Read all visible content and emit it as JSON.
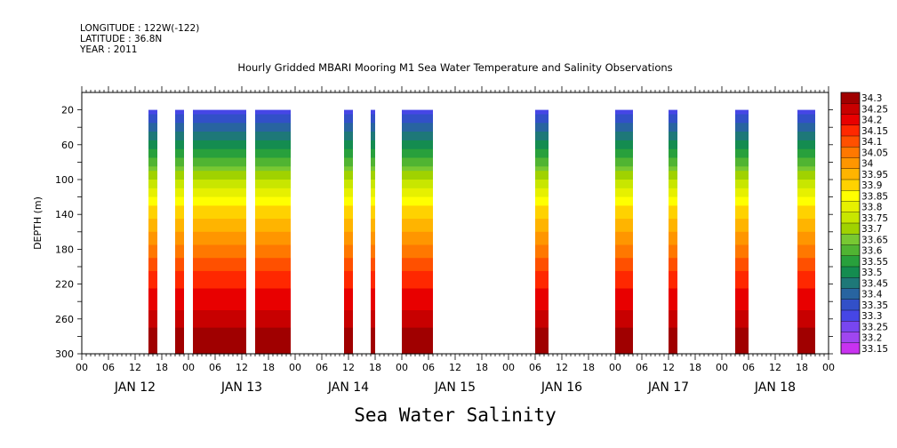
{
  "header": {
    "longitude": "LONGITUDE : 122W(-122)",
    "latitude": "LATITUDE : 36.8N",
    "year": "YEAR : 2011"
  },
  "title": "Hourly Gridded MBARI Mooring M1 Sea Water Temperature and Salinity Observations",
  "bottom_title": "Sea Water Salinity",
  "chart_data": {
    "type": "heatmap",
    "title": "Hourly Gridded MBARI Mooring M1 Sea Water Temperature and Salinity Observations",
    "xlabel": "",
    "ylabel": "DEPTH (m)",
    "xlim_hours": [
      0,
      168
    ],
    "ylim": [
      300,
      0
    ],
    "y_inverted": true,
    "x_hour_ticks": [
      "00",
      "06",
      "12",
      "18",
      "00",
      "06",
      "12",
      "18",
      "00",
      "06",
      "12",
      "18",
      "00",
      "06",
      "12",
      "18",
      "00",
      "06",
      "12",
      "18",
      "00",
      "06",
      "12",
      "18",
      "00",
      "06",
      "12",
      "18",
      "00"
    ],
    "date_labels": [
      "JAN 12",
      "JAN 13",
      "JAN 14",
      "JAN 15",
      "JAN 16",
      "JAN 17",
      "JAN 18"
    ],
    "y_ticks": [
      20,
      60,
      100,
      140,
      180,
      220,
      260,
      300
    ],
    "colorbar": {
      "levels": [
        "34.3",
        "34.25",
        "34.2",
        "34.15",
        "34.1",
        "34.05",
        "34",
        "33.95",
        "33.9",
        "33.85",
        "33.8",
        "33.75",
        "33.7",
        "33.65",
        "33.6",
        "33.55",
        "33.5",
        "33.45",
        "33.4",
        "33.35",
        "33.3",
        "33.25",
        "33.2",
        "33.15"
      ],
      "colors": [
        "#a00000",
        "#c80000",
        "#e80000",
        "#ff2800",
        "#ff5000",
        "#ff7800",
        "#ff9600",
        "#ffb400",
        "#ffd200",
        "#ffff00",
        "#e6f000",
        "#c8e600",
        "#a0d200",
        "#78c832",
        "#50b432",
        "#28a03c",
        "#148c50",
        "#1e7878",
        "#2864a0",
        "#3250c8",
        "#4646e6",
        "#7846f0",
        "#a046f0",
        "#c832f0"
      ]
    },
    "observed_segments": [
      {
        "start": "Jan 12 15h",
        "end": "Jan 12 17h",
        "top_depth": 20
      },
      {
        "start": "Jan 12 21h",
        "end": "Jan 12 23h",
        "top_depth": 20
      },
      {
        "start": "Jan 13 01h",
        "end": "Jan 13 13h",
        "top_depth": 20
      },
      {
        "start": "Jan 13 15h",
        "end": "Jan 13 23h",
        "top_depth": 20
      },
      {
        "start": "Jan 14 11h",
        "end": "Jan 14 13h",
        "top_depth": 20
      },
      {
        "start": "Jan 14 17h",
        "end": "Jan 14 18h",
        "top_depth": 20
      },
      {
        "start": "Jan 15 00h",
        "end": "Jan 15 07h",
        "top_depth": 20
      },
      {
        "start": "Jan 16 06h",
        "end": "Jan 16 09h",
        "top_depth": 20
      },
      {
        "start": "Jan 17 00h",
        "end": "Jan 17 04h",
        "top_depth": 20
      },
      {
        "start": "Jan 17 12h",
        "end": "Jan 17 14h",
        "top_depth": 20
      },
      {
        "start": "Jan 18 03h",
        "end": "Jan 18 06h",
        "top_depth": 20
      },
      {
        "start": "Jan 18 17h",
        "end": "Jan 18 21h",
        "top_depth": 20
      }
    ]
  }
}
